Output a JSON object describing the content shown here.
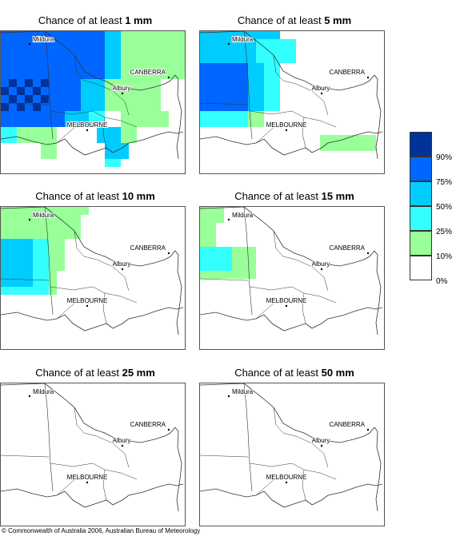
{
  "panels": [
    {
      "prefix": "Chance of at least ",
      "amount": "1 mm",
      "level": 6
    },
    {
      "prefix": "Chance of at least ",
      "amount": "5 mm",
      "level": 5
    },
    {
      "prefix": "Chance of at least ",
      "amount": "10 mm",
      "level": 3
    },
    {
      "prefix": "Chance of at least ",
      "amount": "15 mm",
      "level": 2
    },
    {
      "prefix": "Chance of at least ",
      "amount": "25 mm",
      "level": 0
    },
    {
      "prefix": "Chance of at least ",
      "amount": "50 mm",
      "level": 0
    }
  ],
  "towns": {
    "mildura": "Mildura",
    "canberra": "CANBERRA",
    "albury": "Albury",
    "melbourne": "MELBOURNE"
  },
  "legend": {
    "labels": [
      "90%",
      "75%",
      "50%",
      "25%",
      "10%",
      "0%"
    ],
    "colors": [
      "#003399",
      "#0066ff",
      "#00ccff",
      "#33ffff",
      "#99ff99",
      "#ffffff"
    ]
  },
  "copyright": "© Commonwealth of Australia 2006, Australian Bureau of Meteorology"
}
